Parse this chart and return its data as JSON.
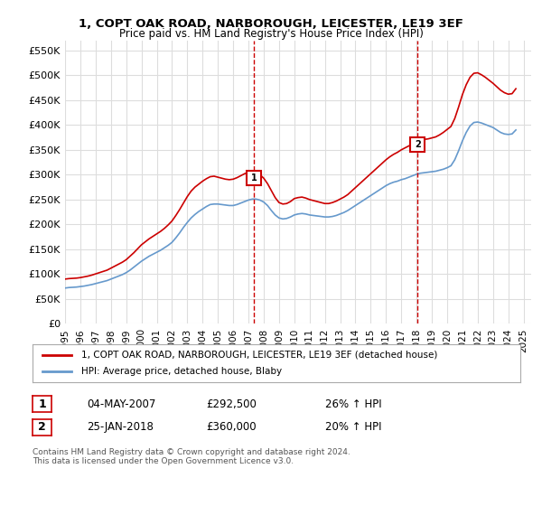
{
  "title": "1, COPT OAK ROAD, NARBOROUGH, LEICESTER, LE19 3EF",
  "subtitle": "Price paid vs. HM Land Registry's House Price Index (HPI)",
  "ylabel_ticks": [
    "£0",
    "£50K",
    "£100K",
    "£150K",
    "£200K",
    "£250K",
    "£300K",
    "£350K",
    "£400K",
    "£450K",
    "£500K",
    "£550K"
  ],
  "ytick_values": [
    0,
    50000,
    100000,
    150000,
    200000,
    250000,
    300000,
    350000,
    400000,
    450000,
    500000,
    550000
  ],
  "ylim": [
    0,
    570000
  ],
  "xlim_start": 1995.0,
  "xlim_end": 2025.5,
  "red_line_color": "#cc0000",
  "blue_line_color": "#6699cc",
  "sale1_year": 2007.35,
  "sale1_price": 292500,
  "sale2_year": 2018.07,
  "sale2_price": 360000,
  "legend_line1": "1, COPT OAK ROAD, NARBOROUGH, LEICESTER, LE19 3EF (detached house)",
  "legend_line2": "HPI: Average price, detached house, Blaby",
  "table_row1_num": "1",
  "table_row1_date": "04-MAY-2007",
  "table_row1_price": "£292,500",
  "table_row1_hpi": "26% ↑ HPI",
  "table_row2_num": "2",
  "table_row2_date": "25-JAN-2018",
  "table_row2_price": "£360,000",
  "table_row2_hpi": "20% ↑ HPI",
  "copyright": "Contains HM Land Registry data © Crown copyright and database right 2024.\nThis data is licensed under the Open Government Licence v3.0.",
  "bg_color": "#ffffff",
  "grid_color": "#dddddd",
  "hpi_years": [
    1995.0,
    1995.25,
    1995.5,
    1995.75,
    1996.0,
    1996.25,
    1996.5,
    1996.75,
    1997.0,
    1997.25,
    1997.5,
    1997.75,
    1998.0,
    1998.25,
    1998.5,
    1998.75,
    1999.0,
    1999.25,
    1999.5,
    1999.75,
    2000.0,
    2000.25,
    2000.5,
    2000.75,
    2001.0,
    2001.25,
    2001.5,
    2001.75,
    2002.0,
    2002.25,
    2002.5,
    2002.75,
    2003.0,
    2003.25,
    2003.5,
    2003.75,
    2004.0,
    2004.25,
    2004.5,
    2004.75,
    2005.0,
    2005.25,
    2005.5,
    2005.75,
    2006.0,
    2006.25,
    2006.5,
    2006.75,
    2007.0,
    2007.25,
    2007.5,
    2007.75,
    2008.0,
    2008.25,
    2008.5,
    2008.75,
    2009.0,
    2009.25,
    2009.5,
    2009.75,
    2010.0,
    2010.25,
    2010.5,
    2010.75,
    2011.0,
    2011.25,
    2011.5,
    2011.75,
    2012.0,
    2012.25,
    2012.5,
    2012.75,
    2013.0,
    2013.25,
    2013.5,
    2013.75,
    2014.0,
    2014.25,
    2014.5,
    2014.75,
    2015.0,
    2015.25,
    2015.5,
    2015.75,
    2016.0,
    2016.25,
    2016.5,
    2016.75,
    2017.0,
    2017.25,
    2017.5,
    2017.75,
    2018.0,
    2018.25,
    2018.5,
    2018.75,
    2019.0,
    2019.25,
    2019.5,
    2019.75,
    2020.0,
    2020.25,
    2020.5,
    2020.75,
    2021.0,
    2021.25,
    2021.5,
    2021.75,
    2022.0,
    2022.25,
    2022.5,
    2022.75,
    2023.0,
    2023.25,
    2023.5,
    2023.75,
    2024.0,
    2024.25,
    2024.5
  ],
  "hpi_values": [
    72000,
    73000,
    73500,
    74000,
    75000,
    76000,
    77500,
    79000,
    81000,
    83000,
    85000,
    87000,
    90000,
    93000,
    96000,
    99000,
    103000,
    108000,
    114000,
    120000,
    126000,
    131000,
    136000,
    140000,
    144000,
    148000,
    153000,
    158000,
    164000,
    173000,
    183000,
    194000,
    204000,
    213000,
    220000,
    226000,
    231000,
    236000,
    240000,
    241000,
    241000,
    240000,
    239000,
    238000,
    238000,
    240000,
    243000,
    246000,
    249000,
    251000,
    251000,
    249000,
    245000,
    238000,
    228000,
    219000,
    213000,
    211000,
    212000,
    215000,
    219000,
    221000,
    222000,
    221000,
    219000,
    218000,
    217000,
    216000,
    215000,
    215000,
    216000,
    218000,
    221000,
    224000,
    228000,
    233000,
    238000,
    243000,
    248000,
    253000,
    258000,
    263000,
    268000,
    273000,
    278000,
    282000,
    285000,
    287000,
    290000,
    292000,
    295000,
    298000,
    301000,
    303000,
    304000,
    305000,
    306000,
    307000,
    309000,
    311000,
    314000,
    318000,
    330000,
    348000,
    368000,
    385000,
    398000,
    405000,
    406000,
    404000,
    401000,
    398000,
    395000,
    390000,
    385000,
    382000,
    381000,
    382000,
    390000
  ],
  "red_years": [
    1995.0,
    1995.25,
    1995.5,
    1995.75,
    1996.0,
    1996.25,
    1996.5,
    1996.75,
    1997.0,
    1997.25,
    1997.5,
    1997.75,
    1998.0,
    1998.25,
    1998.5,
    1998.75,
    1999.0,
    1999.25,
    1999.5,
    1999.75,
    2000.0,
    2000.25,
    2000.5,
    2000.75,
    2001.0,
    2001.25,
    2001.5,
    2001.75,
    2002.0,
    2002.25,
    2002.5,
    2002.75,
    2003.0,
    2003.25,
    2003.5,
    2003.75,
    2004.0,
    2004.25,
    2004.5,
    2004.75,
    2005.0,
    2005.25,
    2005.5,
    2005.75,
    2006.0,
    2006.25,
    2006.5,
    2006.75,
    2007.0,
    2007.25,
    2007.5,
    2007.75,
    2008.0,
    2008.25,
    2008.5,
    2008.75,
    2009.0,
    2009.25,
    2009.5,
    2009.75,
    2010.0,
    2010.25,
    2010.5,
    2010.75,
    2011.0,
    2011.25,
    2011.5,
    2011.75,
    2012.0,
    2012.25,
    2012.5,
    2012.75,
    2013.0,
    2013.25,
    2013.5,
    2013.75,
    2014.0,
    2014.25,
    2014.5,
    2014.75,
    2015.0,
    2015.25,
    2015.5,
    2015.75,
    2016.0,
    2016.25,
    2016.5,
    2016.75,
    2017.0,
    2017.25,
    2017.5,
    2017.75,
    2018.0,
    2018.25,
    2018.5,
    2018.75,
    2019.0,
    2019.25,
    2019.5,
    2019.75,
    2020.0,
    2020.25,
    2020.5,
    2020.75,
    2021.0,
    2021.25,
    2021.5,
    2021.75,
    2022.0,
    2022.25,
    2022.5,
    2022.75,
    2023.0,
    2023.25,
    2023.5,
    2023.75,
    2024.0,
    2024.25,
    2024.5
  ],
  "red_values": [
    90000,
    91000,
    91500,
    92000,
    93000,
    94500,
    96000,
    98000,
    100500,
    103000,
    105500,
    108000,
    112000,
    116000,
    120000,
    124000,
    129000,
    136000,
    143000,
    151000,
    159000,
    165000,
    171000,
    176000,
    181000,
    186000,
    192000,
    199000,
    207000,
    218000,
    230000,
    243000,
    256000,
    267000,
    275000,
    281000,
    287000,
    292000,
    296000,
    297000,
    295000,
    293000,
    291000,
    290000,
    291000,
    294000,
    298000,
    302000,
    305000,
    307000,
    305000,
    300000,
    293000,
    282000,
    268000,
    254000,
    244000,
    241000,
    242000,
    246000,
    252000,
    254000,
    255000,
    253000,
    250000,
    248000,
    246000,
    244000,
    242000,
    242000,
    244000,
    247000,
    251000,
    255000,
    260000,
    267000,
    274000,
    281000,
    288000,
    295000,
    302000,
    309000,
    316000,
    323000,
    330000,
    336000,
    341000,
    345000,
    350000,
    354000,
    358000,
    362000,
    366000,
    369000,
    371000,
    372000,
    374000,
    376000,
    380000,
    385000,
    391000,
    397000,
    413000,
    436000,
    461000,
    481000,
    496000,
    504000,
    505000,
    501000,
    496000,
    490000,
    484000,
    477000,
    470000,
    465000,
    462000,
    463000,
    473000
  ]
}
